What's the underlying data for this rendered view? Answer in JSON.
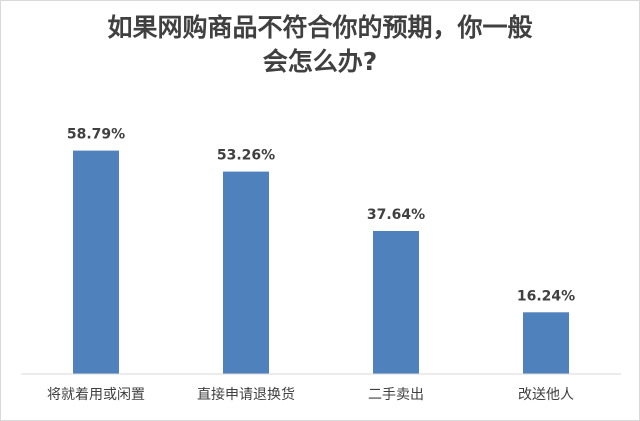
{
  "chart_data": {
    "type": "bar",
    "title_lines": [
      "如果网购商品不符合你的预期，你一般",
      "会怎么办?"
    ],
    "categories": [
      "将就着用或闲置",
      "直接申请退换货",
      "二手卖出",
      "改送他人"
    ],
    "values": [
      58.79,
      53.26,
      37.64,
      16.24
    ],
    "value_labels": [
      "58.79%",
      "53.26%",
      "37.64%",
      "16.24%"
    ],
    "unit": "%",
    "ylim": [
      0,
      70
    ],
    "grid": false,
    "legend": "none",
    "bar_color": "#4f81bd"
  }
}
